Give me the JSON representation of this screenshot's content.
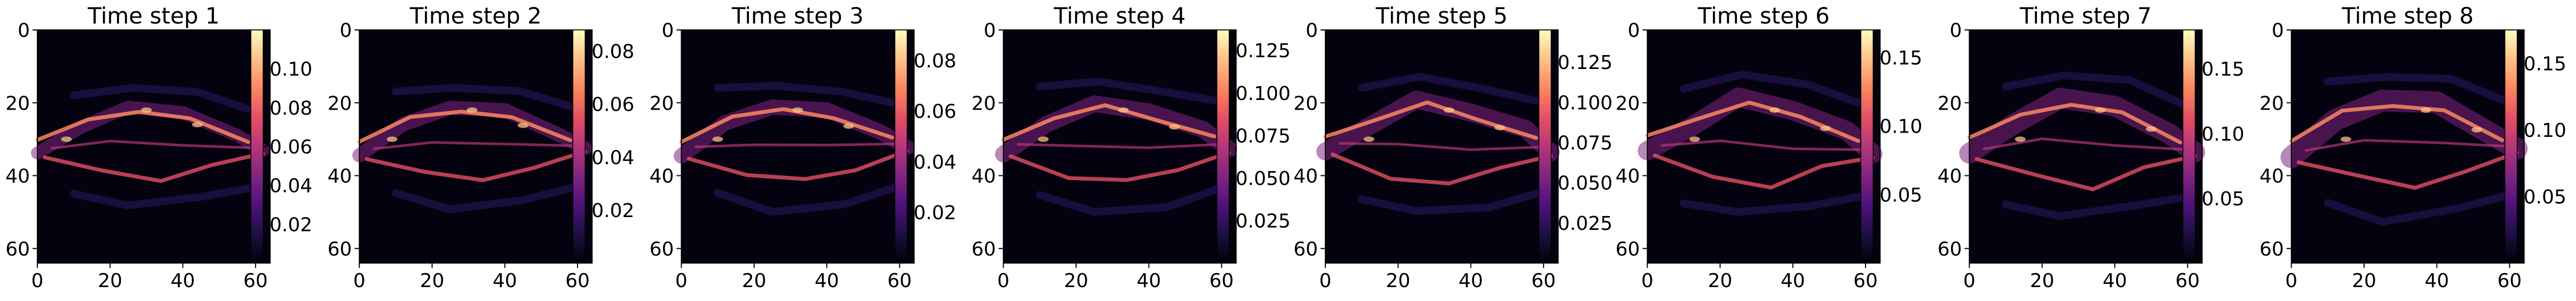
{
  "chart_data": [
    {
      "type": "heatmap",
      "title": "Time step 1",
      "grid": false,
      "x_ticks": [
        "0",
        "20",
        "40",
        "60"
      ],
      "y_ticks": [
        "0",
        "20",
        "40",
        "60"
      ],
      "xlim": [
        0,
        64
      ],
      "ylim": [
        64,
        0
      ],
      "colorbar": {
        "ticks": [
          "0.02",
          "0.04",
          "0.06",
          "0.08",
          "0.10"
        ],
        "tick_values": [
          0.02,
          0.04,
          0.06,
          0.08,
          0.1
        ],
        "vmin": 0.0,
        "vmax": 0.12
      }
    },
    {
      "type": "heatmap",
      "title": "Time step 2",
      "grid": false,
      "x_ticks": [
        "0",
        "20",
        "40",
        "60"
      ],
      "y_ticks": [
        "0",
        "20",
        "40",
        "60"
      ],
      "xlim": [
        0,
        64
      ],
      "ylim": [
        64,
        0
      ],
      "colorbar": {
        "ticks": [
          "0.02",
          "0.04",
          "0.06",
          "0.08"
        ],
        "tick_values": [
          0.02,
          0.04,
          0.06,
          0.08
        ],
        "vmin": 0.0,
        "vmax": 0.088
      }
    },
    {
      "type": "heatmap",
      "title": "Time step 3",
      "grid": false,
      "x_ticks": [
        "0",
        "20",
        "40",
        "60"
      ],
      "y_ticks": [
        "0",
        "20",
        "40",
        "60"
      ],
      "xlim": [
        0,
        64
      ],
      "ylim": [
        64,
        0
      ],
      "colorbar": {
        "ticks": [
          "0.02",
          "0.04",
          "0.06",
          "0.08"
        ],
        "tick_values": [
          0.02,
          0.04,
          0.06,
          0.08
        ],
        "vmin": 0.0,
        "vmax": 0.092
      }
    },
    {
      "type": "heatmap",
      "title": "Time step 4",
      "grid": false,
      "x_ticks": [
        "0",
        "20",
        "40",
        "60"
      ],
      "y_ticks": [
        "0",
        "20",
        "40",
        "60"
      ],
      "xlim": [
        0,
        64
      ],
      "ylim": [
        64,
        0
      ],
      "colorbar": {
        "ticks": [
          "0.025",
          "0.050",
          "0.075",
          "0.100",
          "0.125"
        ],
        "tick_values": [
          0.025,
          0.05,
          0.075,
          0.1,
          0.125
        ],
        "vmin": 0.0,
        "vmax": 0.137
      }
    },
    {
      "type": "heatmap",
      "title": "Time step 5",
      "grid": false,
      "x_ticks": [
        "0",
        "20",
        "40",
        "60"
      ],
      "y_ticks": [
        "0",
        "20",
        "40",
        "60"
      ],
      "xlim": [
        0,
        64
      ],
      "ylim": [
        64,
        0
      ],
      "colorbar": {
        "ticks": [
          "0.025",
          "0.050",
          "0.075",
          "0.100",
          "0.125"
        ],
        "tick_values": [
          0.025,
          0.05,
          0.075,
          0.1,
          0.125
        ],
        "vmin": 0.0,
        "vmax": 0.145
      }
    },
    {
      "type": "heatmap",
      "title": "Time step 6",
      "grid": false,
      "x_ticks": [
        "0",
        "20",
        "40",
        "60"
      ],
      "y_ticks": [
        "0",
        "20",
        "40",
        "60"
      ],
      "xlim": [
        0,
        64
      ],
      "ylim": [
        64,
        0
      ],
      "colorbar": {
        "ticks": [
          "0.05",
          "0.10",
          "0.15"
        ],
        "tick_values": [
          0.05,
          0.1,
          0.15
        ],
        "vmin": 0.0,
        "vmax": 0.17
      }
    },
    {
      "type": "heatmap",
      "title": "Time step 7",
      "grid": false,
      "x_ticks": [
        "0",
        "20",
        "40",
        "60"
      ],
      "y_ticks": [
        "0",
        "20",
        "40",
        "60"
      ],
      "xlim": [
        0,
        64
      ],
      "ylim": [
        64,
        0
      ],
      "colorbar": {
        "ticks": [
          "0.05",
          "0.10",
          "0.15"
        ],
        "tick_values": [
          0.05,
          0.1,
          0.15
        ],
        "vmin": 0.0,
        "vmax": 0.18
      }
    },
    {
      "type": "heatmap",
      "title": "Time step 8",
      "grid": false,
      "x_ticks": [
        "0",
        "20",
        "40",
        "60"
      ],
      "y_ticks": [
        "0",
        "20",
        "40",
        "60"
      ],
      "xlim": [
        0,
        64
      ],
      "ylim": [
        64,
        0
      ],
      "colorbar": {
        "ticks": [
          "0.05",
          "0.10",
          "0.15"
        ],
        "tick_values": [
          0.05,
          0.1,
          0.15
        ],
        "vmin": 0.0,
        "vmax": 0.175
      }
    }
  ],
  "colormap": {
    "name": "magma",
    "stops": [
      "#000004",
      "#1c1044",
      "#4f127b",
      "#812581",
      "#b5367a",
      "#e55064",
      "#fb8761",
      "#fec287",
      "#fcfdbf"
    ]
  }
}
